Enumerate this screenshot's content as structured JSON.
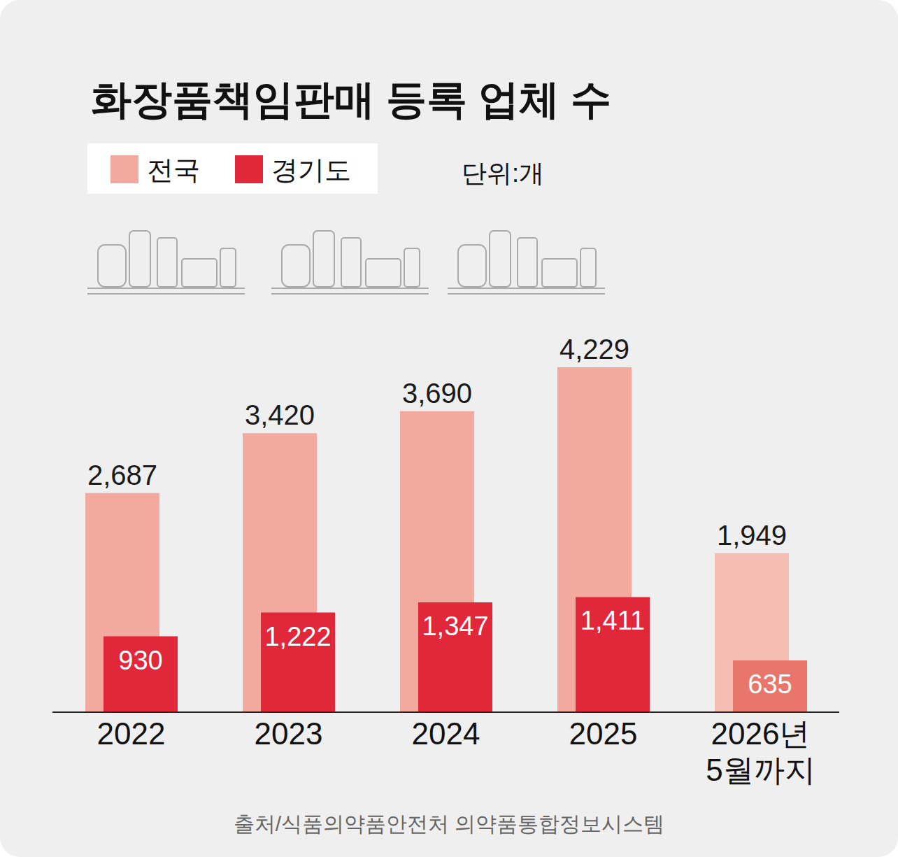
{
  "chart_data": {
    "type": "bar",
    "title": "화장품책임판매 등록 업체 수",
    "annotations": [
      "단위:개",
      "출처/식품의약품안전처 의약품통합정보시스템"
    ],
    "categories": [
      "2022",
      "2023",
      "2024",
      "2025",
      "2026년 5월까지"
    ],
    "series": [
      {
        "name": "전국",
        "color": "#f4a99f",
        "colors": [
          "#f4a99f",
          "#f4a99f",
          "#f4a99f",
          "#f4a99f",
          "#f5bcb3"
        ],
        "values": [
          2687,
          3420,
          3690,
          4229,
          1949
        ],
        "value_labels": [
          "2,687",
          "3,420",
          "3,690",
          "4,229",
          "1,949"
        ]
      },
      {
        "name": "경기도",
        "color": "#e0283a",
        "colors": [
          "#e0283a",
          "#e0283a",
          "#e0283a",
          "#e0283a",
          "#e8766a"
        ],
        "values": [
          930,
          1222,
          1347,
          1411,
          635
        ],
        "value_labels": [
          "930",
          "1,222",
          "1,347",
          "1,411",
          "635"
        ]
      }
    ],
    "ylim": [
      0,
      4700
    ],
    "legend": "top-left",
    "grid": false,
    "data_labels": true,
    "tick_labels": "x"
  }
}
